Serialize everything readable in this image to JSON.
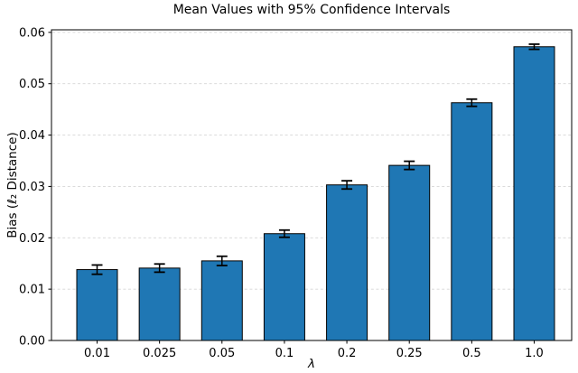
{
  "chart_data": {
    "type": "bar",
    "title": "Mean Values with 95% Confidence Intervals",
    "xlabel": "λ",
    "ylabel": "Bias (ℓ₂ Distance)",
    "categories": [
      "0.01",
      "0.025",
      "0.05",
      "0.1",
      "0.2",
      "0.25",
      "0.5",
      "1.0"
    ],
    "values": [
      0.0138,
      0.0141,
      0.0155,
      0.0208,
      0.0303,
      0.0341,
      0.0463,
      0.0572
    ],
    "errors": [
      0.0009,
      0.0008,
      0.0009,
      0.0007,
      0.0008,
      0.0008,
      0.0007,
      0.0005
    ],
    "ylim": [
      0,
      0.0605
    ],
    "yticks": [
      0,
      0.01,
      0.02,
      0.03,
      0.04,
      0.05,
      0.06
    ],
    "ytick_labels": [
      "0.00",
      "0.01",
      "0.02",
      "0.03",
      "0.04",
      "0.05",
      "0.06"
    ],
    "grid": "horizontal-dashed",
    "legend": "none",
    "error_bar_style": "caps",
    "colors": {
      "bar_fill": "#1f77b4",
      "bar_edge": "#000000",
      "error": "#000000",
      "grid": "#d6d6d6",
      "text": "#000000",
      "background": "#ffffff",
      "spine": "#000000"
    }
  }
}
